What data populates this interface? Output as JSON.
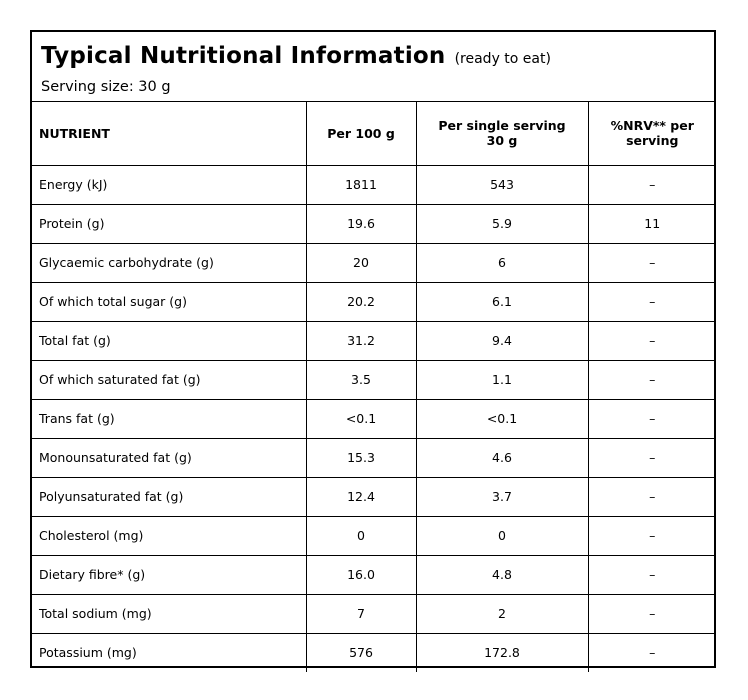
{
  "header": {
    "title": "Typical Nutritional Information",
    "title_note": "(ready to eat)",
    "serving_size": "Serving size: 30 g"
  },
  "table": {
    "columns": {
      "nutrient": "NUTRIENT",
      "per_100g": "Per 100 g",
      "per_serving_line1": "Per single serving",
      "per_serving_line2": "30 g",
      "nrv_line1": "%NRV** per",
      "nrv_line2": "serving"
    },
    "rows": [
      {
        "nutrient": "Energy (kJ)",
        "per_100g": "1811",
        "per_serving": "543",
        "nrv": "–"
      },
      {
        "nutrient": "Protein (g)",
        "per_100g": "19.6",
        "per_serving": "5.9",
        "nrv": "11"
      },
      {
        "nutrient": "Glycaemic carbohydrate (g)",
        "per_100g": "20",
        "per_serving": "6",
        "nrv": "–"
      },
      {
        "nutrient": "Of which total sugar (g)",
        "per_100g": "20.2",
        "per_serving": "6.1",
        "nrv": "–"
      },
      {
        "nutrient": "Total fat (g)",
        "per_100g": "31.2",
        "per_serving": "9.4",
        "nrv": "–"
      },
      {
        "nutrient": "Of which saturated fat (g)",
        "per_100g": "3.5",
        "per_serving": "1.1",
        "nrv": "–"
      },
      {
        "nutrient": "Trans fat (g)",
        "per_100g": "<0.1",
        "per_serving": "<0.1",
        "nrv": "–"
      },
      {
        "nutrient": "Monounsaturated fat (g)",
        "per_100g": "15.3",
        "per_serving": "4.6",
        "nrv": "–"
      },
      {
        "nutrient": "Polyunsaturated fat (g)",
        "per_100g": "12.4",
        "per_serving": "3.7",
        "nrv": "–"
      },
      {
        "nutrient": "Cholesterol (mg)",
        "per_100g": "0",
        "per_serving": "0",
        "nrv": "–"
      },
      {
        "nutrient": "Dietary fibre* (g)",
        "per_100g": "16.0",
        "per_serving": "4.8",
        "nrv": "–"
      },
      {
        "nutrient": "Total sodium (mg)",
        "per_100g": "7",
        "per_serving": "2",
        "nrv": "–"
      },
      {
        "nutrient": "Potassium (mg)",
        "per_100g": "576",
        "per_serving": "172.8",
        "nrv": "–"
      }
    ]
  }
}
